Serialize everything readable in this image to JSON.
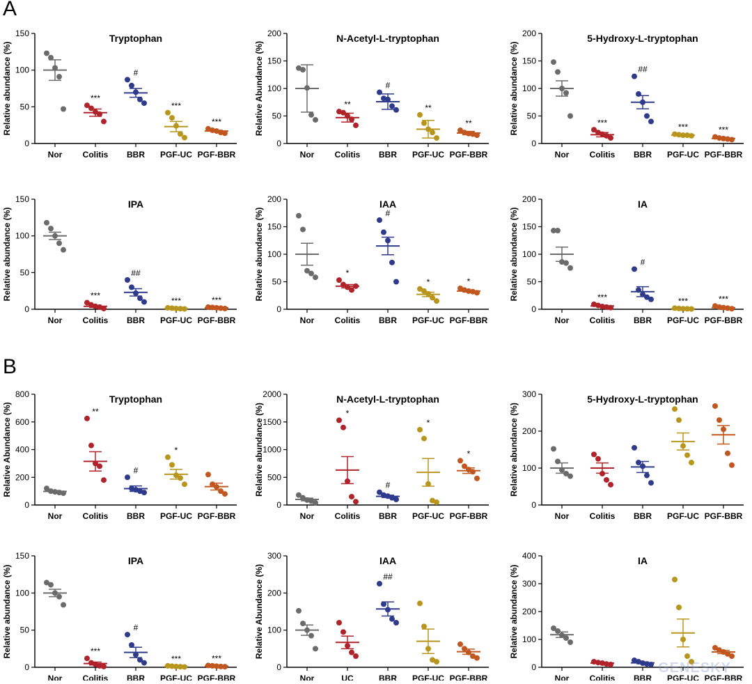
{
  "panels": [
    {
      "letter": "A"
    },
    {
      "letter": "B"
    }
  ],
  "watermark": "GENESKY",
  "chart_data": [
    {
      "type": "scatter",
      "panel": "A",
      "title": "Tryptophan",
      "ylabel": "Relative abundance (%)",
      "ylim": [
        0,
        150
      ],
      "yticks": [
        0,
        50,
        100,
        150
      ],
      "categories": [
        "Nor",
        "Colitis",
        "BBR",
        "PGF-UC",
        "PGF-BBR"
      ],
      "series": [
        {
          "values": [
            123,
            117,
            103,
            91,
            47
          ],
          "mean": 100,
          "sem": 14,
          "sig": ""
        },
        {
          "values": [
            52,
            48,
            43,
            40,
            30
          ],
          "mean": 42,
          "sem": 5,
          "sig": "***"
        },
        {
          "values": [
            87,
            79,
            70,
            60,
            55
          ],
          "mean": 69,
          "sem": 6,
          "sig": "#"
        },
        {
          "values": [
            42,
            35,
            24,
            13,
            8
          ],
          "mean": 23,
          "sem": 7,
          "sig": "***"
        },
        {
          "values": [
            20,
            18,
            17,
            15,
            14
          ],
          "mean": 17,
          "sem": 1,
          "sig": "***"
        }
      ]
    },
    {
      "type": "scatter",
      "panel": "A",
      "title": "N-Acetyl-L-tryptophan",
      "ylabel": "Relative Abundance (%)",
      "ylim": [
        0,
        200
      ],
      "yticks": [
        0,
        50,
        100,
        150,
        200
      ],
      "categories": [
        "Nor",
        "Colitis",
        "BBR",
        "PGF-UC",
        "PGF-BBR"
      ],
      "series": [
        {
          "values": [
            137,
            134,
            101,
            52,
            43
          ],
          "mean": 100,
          "sem": 43,
          "sig": ""
        },
        {
          "values": [
            58,
            56,
            50,
            44,
            33
          ],
          "mean": 47,
          "sem": 8,
          "sig": "**"
        },
        {
          "values": [
            93,
            82,
            80,
            68,
            61
          ],
          "mean": 76,
          "sem": 14,
          "sig": "#"
        },
        {
          "values": [
            52,
            37,
            26,
            20,
            10
          ],
          "mean": 26,
          "sem": 16,
          "sig": "**"
        },
        {
          "values": [
            24,
            20,
            18,
            17,
            15
          ],
          "mean": 19,
          "sem": 3,
          "sig": "**"
        }
      ]
    },
    {
      "type": "scatter",
      "panel": "A",
      "title": "5-Hydroxy-L-tryptophan",
      "ylabel": "Relative abundance (%)",
      "ylim": [
        0,
        200
      ],
      "yticks": [
        0,
        50,
        100,
        150,
        200
      ],
      "categories": [
        "Nor",
        "Colitis",
        "BBR",
        "PGF-UC",
        "PGF-BBR"
      ],
      "series": [
        {
          "values": [
            148,
            130,
            100,
            92,
            50
          ],
          "mean": 100,
          "sem": 14,
          "sig": ""
        },
        {
          "values": [
            25,
            20,
            17,
            14,
            10
          ],
          "mean": 16,
          "sem": 4,
          "sig": "***"
        },
        {
          "values": [
            122,
            90,
            75,
            50,
            40
          ],
          "mean": 75,
          "sem": 12,
          "sig": "##"
        },
        {
          "values": [
            17,
            16,
            15,
            15,
            14
          ],
          "mean": 15,
          "sem": 1,
          "sig": "***"
        },
        {
          "values": [
            12,
            10,
            9,
            8,
            7
          ],
          "mean": 9,
          "sem": 1,
          "sig": "***"
        }
      ]
    },
    {
      "type": "scatter",
      "panel": "A",
      "title": "IPA",
      "ylabel": "Relative abundance (%)",
      "ylim": [
        0,
        150
      ],
      "yticks": [
        0,
        50,
        100,
        150
      ],
      "categories": [
        "Nor",
        "Colitis",
        "BBR",
        "PGF-UC",
        "PGF-BBR"
      ],
      "series": [
        {
          "values": [
            118,
            110,
            100,
            90,
            81
          ],
          "mean": 100,
          "sem": 5,
          "sig": ""
        },
        {
          "values": [
            9,
            6,
            4,
            3,
            1
          ],
          "mean": 4,
          "sem": 1.5,
          "sig": "***"
        },
        {
          "values": [
            40,
            30,
            22,
            15,
            10
          ],
          "mean": 23,
          "sem": 5,
          "sig": "##"
        },
        {
          "values": [
            2,
            1.5,
            1,
            0.8,
            0.5
          ],
          "mean": 1,
          "sem": 0.3,
          "sig": "***"
        },
        {
          "values": [
            3,
            2.5,
            2,
            1.5,
            1
          ],
          "mean": 2,
          "sem": 0.4,
          "sig": "***"
        }
      ]
    },
    {
      "type": "scatter",
      "panel": "A",
      "title": "IAA",
      "ylabel": "Relative abundance (%)",
      "ylim": [
        0,
        200
      ],
      "yticks": [
        0,
        50,
        100,
        150,
        200
      ],
      "categories": [
        "Nor",
        "Colitis",
        "BBR",
        "PGF-UC",
        "PGF-BBR"
      ],
      "series": [
        {
          "values": [
            170,
            145,
            70,
            65,
            58
          ],
          "mean": 100,
          "sem": 20,
          "sig": ""
        },
        {
          "values": [
            53,
            45,
            40,
            35,
            42
          ],
          "mean": 42,
          "sem": 3,
          "sig": "*"
        },
        {
          "values": [
            162,
            140,
            125,
            85,
            50
          ],
          "mean": 115,
          "sem": 16,
          "sig": "#"
        },
        {
          "values": [
            37,
            33,
            28,
            21,
            15
          ],
          "mean": 27,
          "sem": 4,
          "sig": "*"
        },
        {
          "values": [
            38,
            35,
            33,
            32,
            30
          ],
          "mean": 33,
          "sem": 1.5,
          "sig": "*"
        }
      ]
    },
    {
      "type": "scatter",
      "panel": "A",
      "title": "IA",
      "ylabel": "Relative abundance (%)",
      "ylim": [
        0,
        200
      ],
      "yticks": [
        0,
        50,
        100,
        150,
        200
      ],
      "categories": [
        "Nor",
        "Colitis",
        "BBR",
        "PGF-UC",
        "PGF-BBR"
      ],
      "series": [
        {
          "values": [
            143,
            143,
            86,
            84,
            75
          ],
          "mean": 100,
          "sem": 13,
          "sig": ""
        },
        {
          "values": [
            9,
            7,
            5,
            4,
            3
          ],
          "mean": 6,
          "sem": 1,
          "sig": "***"
        },
        {
          "values": [
            73,
            35,
            27,
            22,
            18
          ],
          "mean": 32,
          "sem": 9,
          "sig": "#"
        },
        {
          "values": [
            2,
            1.5,
            1,
            0.8,
            0.5
          ],
          "mean": 1,
          "sem": 0.3,
          "sig": "***"
        },
        {
          "values": [
            6,
            4,
            3,
            2,
            1
          ],
          "mean": 3,
          "sem": 1,
          "sig": "***"
        }
      ]
    },
    {
      "type": "scatter",
      "panel": "B",
      "title": "Tryptophan",
      "ylabel": "Relative Abundance (%)",
      "ylim": [
        0,
        800
      ],
      "yticks": [
        0,
        200,
        400,
        600,
        800
      ],
      "categories": [
        "Nor",
        "Colitis",
        "BBR",
        "PGF-UC",
        "PGF-BBR"
      ],
      "series": [
        {
          "values": [
            120,
            100,
            95,
            90,
            85
          ],
          "mean": 98,
          "sem": 6,
          "sig": ""
        },
        {
          "values": [
            625,
            430,
            300,
            280,
            180
          ],
          "mean": 315,
          "sem": 70,
          "sig": "**"
        },
        {
          "values": [
            200,
            120,
            110,
            100,
            90
          ],
          "mean": 118,
          "sem": 20,
          "sig": "#"
        },
        {
          "values": [
            345,
            290,
            215,
            195,
            150
          ],
          "mean": 222,
          "sem": 35,
          "sig": "*"
        },
        {
          "values": [
            220,
            150,
            130,
            100,
            80
          ],
          "mean": 133,
          "sem": 25,
          "sig": ""
        }
      ]
    },
    {
      "type": "scatter",
      "panel": "B",
      "title": "N-Acetyl-L-tryptophan",
      "ylabel": "Relative abundance (%)",
      "ylim": [
        0,
        2000
      ],
      "yticks": [
        0,
        500,
        1000,
        1500,
        2000
      ],
      "categories": [
        "Nor",
        "Colitis",
        "BBR",
        "PGF-UC",
        "PGF-BBR"
      ],
      "series": [
        {
          "values": [
            180,
            130,
            90,
            70,
            40
          ],
          "mean": 100,
          "sem": 25,
          "sig": ""
        },
        {
          "values": [
            1530,
            1400,
            430,
            150,
            60
          ],
          "mean": 630,
          "sem": 245,
          "sig": "*"
        },
        {
          "values": [
            230,
            180,
            160,
            130,
            100
          ],
          "mean": 155,
          "sem": 22,
          "sig": "#"
        },
        {
          "values": [
            1360,
            1200,
            380,
            80,
            50
          ],
          "mean": 590,
          "sem": 250,
          "sig": "*"
        },
        {
          "values": [
            800,
            700,
            640,
            600,
            480
          ],
          "mean": 620,
          "sem": 50,
          "sig": "*"
        }
      ]
    },
    {
      "type": "scatter",
      "panel": "B",
      "title": "5-Hydroxy-L-tryptophan",
      "ylabel": "Relative abundance (%)",
      "ylim": [
        0,
        300
      ],
      "yticks": [
        0,
        100,
        200,
        300
      ],
      "categories": [
        "Nor",
        "Colitis",
        "BBR",
        "PGF-UC",
        "PGF-BBR"
      ],
      "series": [
        {
          "values": [
            152,
            118,
            95,
            85,
            78
          ],
          "mean": 100,
          "sem": 14,
          "sig": ""
        },
        {
          "values": [
            137,
            125,
            85,
            68,
            55
          ],
          "mean": 100,
          "sem": 14,
          "sig": ""
        },
        {
          "values": [
            155,
            115,
            105,
            80,
            60
          ],
          "mean": 103,
          "sem": 15,
          "sig": ""
        },
        {
          "values": [
            260,
            230,
            160,
            135,
            115
          ],
          "mean": 172,
          "sem": 23,
          "sig": ""
        },
        {
          "values": [
            268,
            230,
            205,
            140,
            108
          ],
          "mean": 190,
          "sem": 25,
          "sig": ""
        }
      ]
    },
    {
      "type": "scatter",
      "panel": "B",
      "title": "IPA",
      "ylabel": "Relative abundance (%)",
      "ylim": [
        0,
        150
      ],
      "yticks": [
        0,
        50,
        100,
        150
      ],
      "categories": [
        "Nor",
        "Colitis",
        "BBR",
        "PGF-UC",
        "PGF-BBR"
      ],
      "series": [
        {
          "values": [
            114,
            111,
            100,
            95,
            84
          ],
          "mean": 100,
          "sem": 5,
          "sig": ""
        },
        {
          "values": [
            12,
            6,
            4,
            2,
            1
          ],
          "mean": 5,
          "sem": 2,
          "sig": "***"
        },
        {
          "values": [
            44,
            30,
            17,
            10,
            6
          ],
          "mean": 20,
          "sem": 7,
          "sig": "#"
        },
        {
          "values": [
            2,
            1.5,
            1,
            0.8,
            0.5
          ],
          "mean": 1,
          "sem": 0.3,
          "sig": "***"
        },
        {
          "values": [
            2.5,
            2,
            1.5,
            1,
            0.8
          ],
          "mean": 1.5,
          "sem": 0.3,
          "sig": "***"
        }
      ]
    },
    {
      "type": "scatter",
      "panel": "B",
      "title": "IAA",
      "ylabel": "Relative Abundance (%)",
      "ylim": [
        0,
        300
      ],
      "yticks": [
        0,
        100,
        200,
        300
      ],
      "categories": [
        "Nor",
        "UC",
        "BBR",
        "PGF-UC",
        "PGF-BBR"
      ],
      "series": [
        {
          "values": [
            152,
            118,
            100,
            85,
            50
          ],
          "mean": 100,
          "sem": 14,
          "sig": ""
        },
        {
          "values": [
            120,
            95,
            58,
            40,
            30
          ],
          "mean": 67,
          "sem": 17,
          "sig": ""
        },
        {
          "values": [
            225,
            170,
            155,
            130,
            120
          ],
          "mean": 157,
          "sem": 19,
          "sig": "##"
        },
        {
          "values": [
            172,
            110,
            50,
            20,
            15
          ],
          "mean": 70,
          "sem": 33,
          "sig": ""
        },
        {
          "values": [
            62,
            50,
            40,
            30,
            25
          ],
          "mean": 42,
          "sem": 7,
          "sig": ""
        }
      ]
    },
    {
      "type": "scatter",
      "panel": "B",
      "title": "IA",
      "ylabel": "Relative abundance (%)",
      "ylim": [
        0,
        400
      ],
      "yticks": [
        0,
        100,
        200,
        300,
        400
      ],
      "categories": [
        "Nor",
        "Colitis",
        "BBR",
        "PGF-UC",
        "PGF-BBR"
      ],
      "series": [
        {
          "values": [
            140,
            130,
            115,
            105,
            90
          ],
          "mean": 117,
          "sem": 10,
          "sig": ""
        },
        {
          "values": [
            20,
            17,
            15,
            12,
            10
          ],
          "mean": 15,
          "sem": 2,
          "sig": ""
        },
        {
          "values": [
            25,
            20,
            15,
            12,
            10
          ],
          "mean": 16,
          "sem": 3,
          "sig": ""
        },
        {
          "values": [
            315,
            215,
            100,
            40,
            20
          ],
          "mean": 123,
          "sem": 50,
          "sig": ""
        },
        {
          "values": [
            70,
            62,
            55,
            48,
            40
          ],
          "mean": 55,
          "sem": 6,
          "sig": ""
        }
      ]
    }
  ],
  "colors": [
    "#6b6b6b",
    "#b0232a",
    "#2e3a8c",
    "#b8961d",
    "#c1561f"
  ]
}
